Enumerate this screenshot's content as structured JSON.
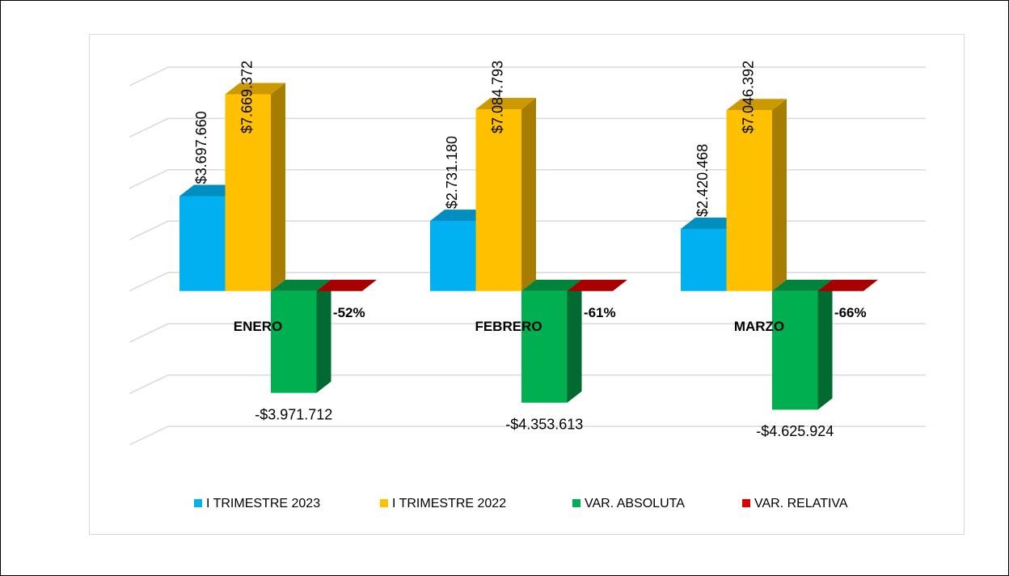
{
  "chart_data": {
    "type": "bar3d",
    "categories": [
      "ENERO",
      "FEBRERO",
      "MARZO"
    ],
    "series": [
      {
        "name": "I TRIMESTRE 2023",
        "color": "#00b0f0",
        "values": [
          3697660,
          2731180,
          2420468
        ],
        "value_labels": [
          "$3.697.660",
          "$2.731.180",
          "$2.420.468"
        ]
      },
      {
        "name": "I TRIMESTRE 2022",
        "color": "#ffc000",
        "values": [
          7669372,
          7084793,
          7046392
        ],
        "value_labels": [
          "$7.669.372",
          "$7.084.793",
          "$7.046.392"
        ]
      },
      {
        "name": "VAR. ABSOLUTA",
        "color": "#00b050",
        "values": [
          -3971712,
          -4353613,
          -4625924
        ],
        "value_labels": [
          "-$3.971.712",
          "-$4.353.613",
          "-$4.625.924"
        ]
      },
      {
        "name": "VAR. RELATIVA",
        "color": "#e00000",
        "values": [
          -0.52,
          -0.61,
          -0.66
        ],
        "value_labels": [
          "-52%",
          "-61%",
          "-66%"
        ]
      }
    ],
    "ylim": [
      -6000000,
      8000000
    ],
    "yticks": [
      -6000000,
      -4000000,
      -2000000,
      0,
      2000000,
      4000000,
      6000000,
      8000000
    ],
    "grid": true,
    "legend": "bottom"
  }
}
